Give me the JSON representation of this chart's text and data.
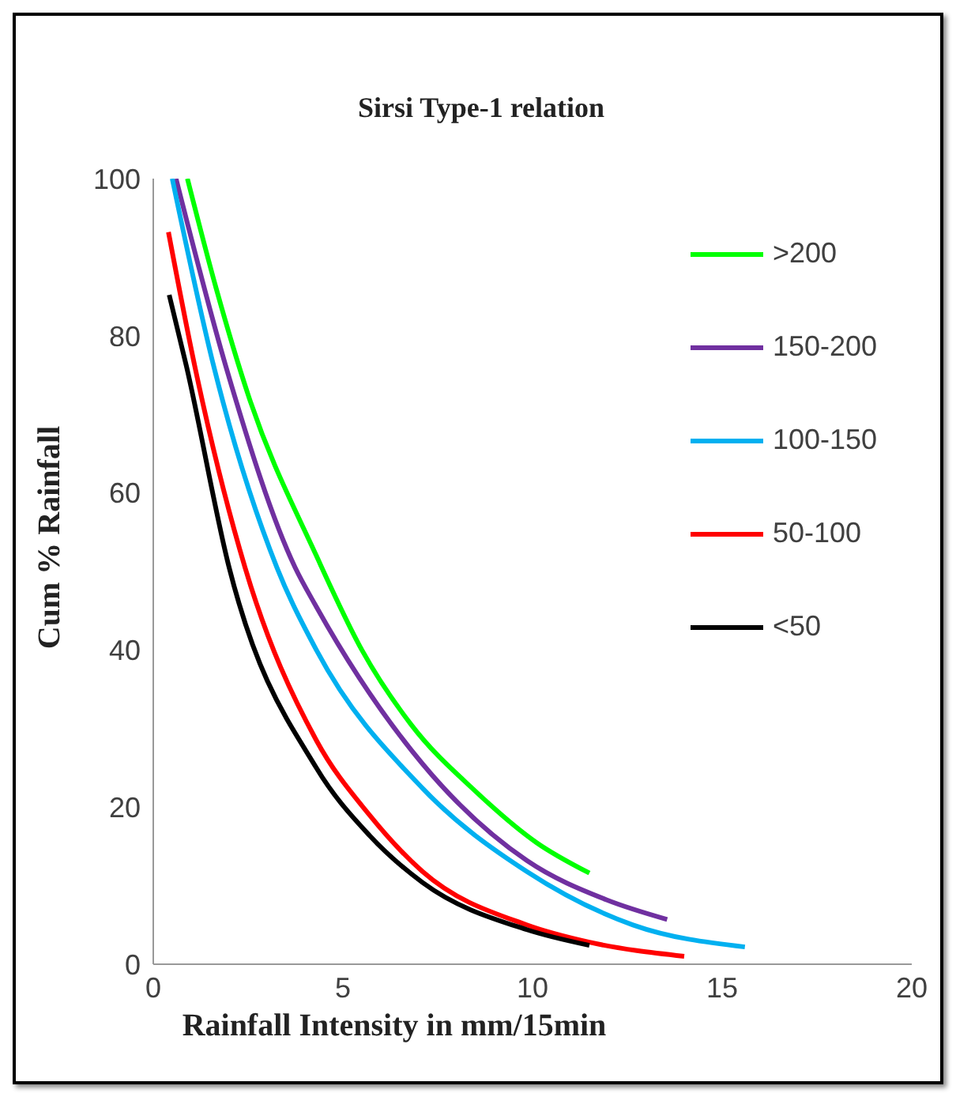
{
  "chart_data": {
    "type": "line",
    "title": "Sirsi Type-1 relation",
    "xlabel": "Rainfall Intensity in mm/15min",
    "ylabel": "Cum % Rainfall",
    "xlim": [
      0,
      20
    ],
    "xticks": [
      0,
      5,
      10,
      15,
      20
    ],
    "ylim": [
      0,
      100
    ],
    "yticks": [
      0,
      20,
      40,
      60,
      80,
      100
    ],
    "grid": false,
    "legend": "top right",
    "series": [
      {
        "name": ">200",
        "color": "#00ff00",
        "x": [
          0.9,
          1.66,
          2.5,
          4.3,
          5.5,
          6.8,
          8.5,
          10.1,
          11.5
        ],
        "values": [
          100,
          86,
          72.5,
          52,
          40,
          30.5,
          22,
          15.5,
          11.6
        ]
      },
      {
        "name": "150-200",
        "color": "#7030a0",
        "x": [
          0.6,
          1.92,
          3.74,
          4.3,
          7.1,
          9.85,
          11.95,
          13.55
        ],
        "values": [
          100,
          76,
          50.5,
          45.5,
          25.5,
          13.2,
          8.2,
          5.7
        ]
      },
      {
        "name": "100-150",
        "color": "#00b0f0",
        "x": [
          0.5,
          1.6,
          3.26,
          4.3,
          7.1,
          9.85,
          12.65,
          15.6
        ],
        "values": [
          100,
          76,
          50.5,
          40,
          22.4,
          11.8,
          5,
          2.2
        ]
      },
      {
        "name": "50-100",
        "color": "#ff0000",
        "x": [
          0.4,
          1.1,
          2.42,
          4.3,
          5.7,
          7.1,
          9.85,
          11.5,
          14
        ],
        "values": [
          93.2,
          76,
          50.5,
          28.5,
          19,
          11.8,
          5,
          2.8,
          1
        ]
      },
      {
        "name": "<50",
        "color": "#000000",
        "x": [
          0.42,
          0.88,
          2,
          4.3,
          5.7,
          7.1,
          9.85,
          11.5
        ],
        "values": [
          85.2,
          76,
          50.5,
          25,
          16.4,
          10.4,
          4.4,
          2.4
        ]
      }
    ]
  }
}
